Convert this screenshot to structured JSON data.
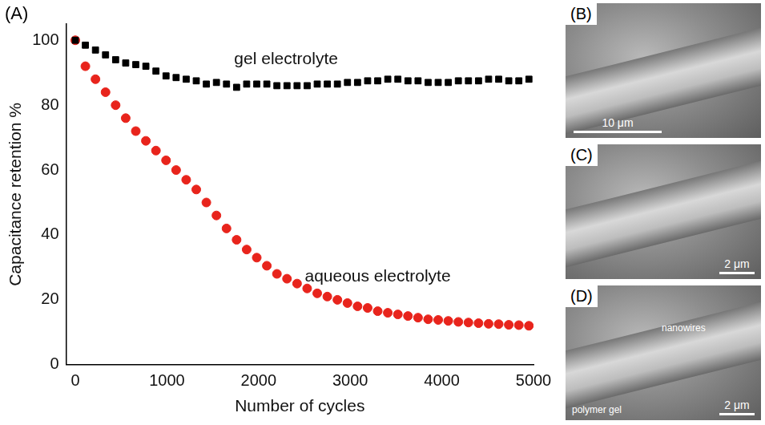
{
  "chart_data": {
    "type": "scatter",
    "panel_label": "(A)",
    "x_label": "Number of cycles",
    "y_label": "Capacitance retention %",
    "x": [
      0,
      110,
      220,
      330,
      440,
      550,
      660,
      770,
      880,
      990,
      1100,
      1210,
      1320,
      1430,
      1540,
      1650,
      1760,
      1870,
      1980,
      2090,
      2200,
      2310,
      2420,
      2530,
      2640,
      2750,
      2860,
      2970,
      3080,
      3190,
      3300,
      3410,
      3520,
      3630,
      3740,
      3850,
      3960,
      4070,
      4180,
      4290,
      4400,
      4510,
      4620,
      4730,
      4840,
      4950
    ],
    "series": [
      {
        "name": "gel electrolyte",
        "color": "#000000",
        "marker": "square",
        "values": [
          100,
          98.5,
          97,
          95.5,
          94,
          93,
          92.5,
          92,
          90.5,
          89,
          88.5,
          88,
          87.5,
          86.5,
          87,
          86.5,
          85.5,
          86.5,
          86.5,
          86.5,
          86,
          86,
          86,
          86,
          86.5,
          86.5,
          86.5,
          87,
          87,
          87.5,
          87.5,
          88,
          88,
          87.5,
          87.5,
          87,
          87,
          87,
          87.5,
          87.5,
          87.5,
          88,
          88,
          87.5,
          87.5,
          88
        ]
      },
      {
        "name": "aqueous electrolyte",
        "color": "#e8241c",
        "marker": "circle",
        "values": [
          100,
          92,
          88,
          84,
          80,
          76,
          72,
          69,
          66,
          63,
          60,
          57,
          54,
          50,
          46,
          42,
          38.5,
          35.5,
          33,
          30.5,
          28,
          26.5,
          25,
          23.5,
          22,
          21,
          20,
          19,
          18,
          17.5,
          16.5,
          16,
          15.5,
          15,
          14.5,
          14,
          13.8,
          13.5,
          13.2,
          13,
          12.8,
          12.6,
          12.5,
          12.3,
          12.2,
          12
        ]
      }
    ],
    "annotations": [
      {
        "text": "gel electrolyte",
        "x": 2300,
        "y": 94
      },
      {
        "text": "aqueous electrolyte",
        "x": 3300,
        "y": 27
      }
    ],
    "xlim": [
      -100,
      5000
    ],
    "xticks": [
      0,
      1000,
      2000,
      3000,
      4000,
      5000
    ],
    "ylim": [
      0,
      105
    ],
    "yticks": [
      0,
      20,
      40,
      60,
      80,
      100
    ],
    "grid": false
  },
  "image_panels": [
    {
      "label": "(B)",
      "scale_bar": "10 μm"
    },
    {
      "label": "(C)",
      "scale_bar": "2 μm"
    },
    {
      "label": "(D)",
      "scale_bar": "2 μm",
      "annotations": [
        "nanowires",
        "polymer gel"
      ]
    }
  ]
}
